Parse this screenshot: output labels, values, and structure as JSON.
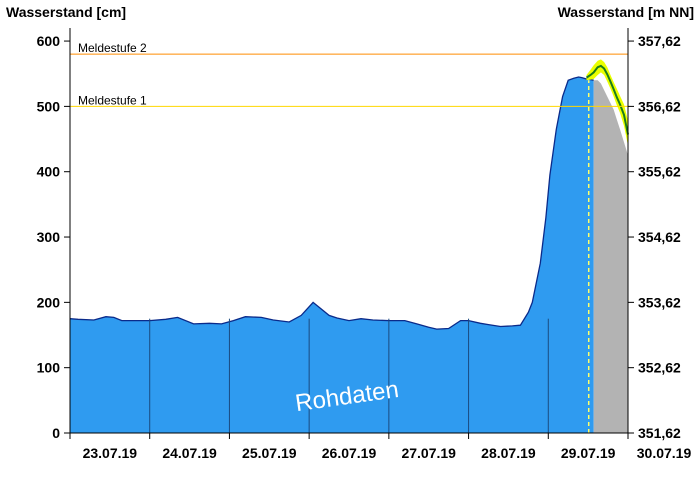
{
  "chart_data": {
    "type": "area",
    "left_axis_title": "Wasserstand [cm]",
    "right_axis_title": "Wasserstand [m NN]",
    "ylim": [
      0,
      620
    ],
    "left_ticks": [
      0,
      100,
      200,
      300,
      400,
      500,
      600
    ],
    "right_tick_labels": [
      "351,62",
      "352,62",
      "353,62",
      "354,62",
      "355,62",
      "356,62",
      "357,62"
    ],
    "x_labels": [
      "23.07.19",
      "24.07.19",
      "25.07.19",
      "26.07.19",
      "27.07.19",
      "28.07.19",
      "29.07.19",
      "30.07.19"
    ],
    "x_range": [
      0,
      7
    ],
    "grid": false,
    "thresholds": [
      {
        "label": "Meldestufe 2",
        "value": 580,
        "color": "#ff8c00"
      },
      {
        "label": "Meldestufe 1",
        "value": 500,
        "color": "#ffd700"
      }
    ],
    "watermark": "Rohdaten",
    "series": [
      {
        "kind": "measured",
        "color": "#2f9bf0",
        "x": [
          0,
          0.1,
          0.3,
          0.45,
          0.55,
          0.65,
          0.8,
          1.0,
          1.2,
          1.35,
          1.55,
          1.75,
          1.9,
          2.05,
          2.2,
          2.4,
          2.55,
          2.75,
          2.9,
          3.05,
          3.15,
          3.25,
          3.35,
          3.5,
          3.65,
          3.8,
          4.0,
          4.2,
          4.35,
          4.5,
          4.6,
          4.75,
          4.9,
          5.0,
          5.15,
          5.25,
          5.4,
          5.55,
          5.65,
          5.75,
          5.8,
          5.9,
          5.97,
          6.02,
          6.1,
          6.18,
          6.25,
          6.32,
          6.38,
          6.42,
          6.48,
          6.53,
          6.57
        ],
        "y": [
          175,
          174,
          173,
          178,
          177,
          172,
          172,
          172,
          174,
          177,
          167,
          168,
          167,
          172,
          178,
          177,
          173,
          170,
          180,
          200,
          190,
          180,
          176,
          172,
          175,
          173,
          172,
          172,
          167,
          162,
          159,
          160,
          172,
          172,
          168,
          166,
          163,
          164,
          165,
          185,
          200,
          260,
          330,
          395,
          465,
          515,
          540,
          543,
          545,
          544,
          542,
          541,
          540
        ]
      },
      {
        "kind": "forecast-range",
        "fill": "#b3b3b3",
        "x": [
          6.57,
          6.62,
          6.66,
          6.7,
          6.74,
          6.78,
          6.82,
          6.86,
          6.9,
          6.95,
          7.0
        ],
        "y": [
          540,
          540,
          535,
          525,
          515,
          505,
          495,
          480,
          465,
          445,
          425
        ]
      },
      {
        "kind": "forecast-band",
        "color": "#eaff00",
        "x": [
          6.48,
          6.53,
          6.57,
          6.62,
          6.66,
          6.7,
          6.74,
          6.78,
          6.82,
          6.86,
          6.9,
          6.95,
          7.0
        ],
        "upper": [
          548,
          556,
          563,
          570,
          572,
          568,
          560,
          548,
          537,
          527,
          516,
          503,
          478
        ],
        "lower": [
          540,
          541,
          542,
          548,
          552,
          548,
          538,
          527,
          515,
          502,
          490,
          470,
          440
        ]
      },
      {
        "kind": "forecast-median",
        "color": "#1a7d1a",
        "x": [
          6.48,
          6.53,
          6.57,
          6.62,
          6.66,
          6.7,
          6.74,
          6.78,
          6.82,
          6.86,
          6.9,
          6.95,
          7.0
        ],
        "y": [
          544,
          548,
          552,
          560,
          562,
          558,
          549,
          538,
          526,
          514,
          503,
          487,
          457
        ]
      }
    ],
    "forecast_start": 6.57
  }
}
